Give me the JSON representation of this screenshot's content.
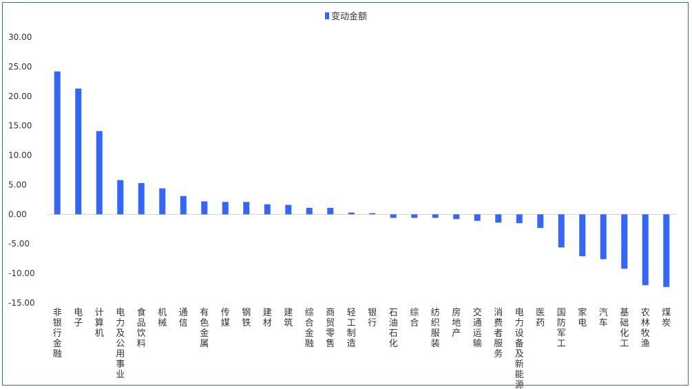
{
  "chart_data": {
    "type": "bar",
    "title": "",
    "xlabel": "",
    "ylabel": "",
    "legend": {
      "position": "top-center"
    },
    "grid": false,
    "ylim": [
      -15,
      30
    ],
    "yticks": [
      "30.00",
      "25.00",
      "20.00",
      "15.00",
      "10.00",
      "5.00",
      "0.00",
      "-5.00",
      "-10.00",
      "-15.00"
    ],
    "yticks_values": [
      30,
      25,
      20,
      15,
      10,
      5,
      0,
      -5,
      -10,
      -15
    ],
    "categories": [
      "非银行金融",
      "电子",
      "计算机",
      "电力及公用事业",
      "食品饮料",
      "机械",
      "通信",
      "有色金属",
      "传媒",
      "钢铁",
      "建材",
      "建筑",
      "综合金融",
      "商贸零售",
      "轻工制造",
      "银行",
      "石油石化",
      "综合",
      "纺织服装",
      "房地产",
      "交通运输",
      "消费者服务",
      "电力设备及新能源",
      "医药",
      "国防军工",
      "家电",
      "汽车",
      "基础化工",
      "农林牧渔",
      "煤炭"
    ],
    "series": [
      {
        "name": "变动金额",
        "color": "#3366ff",
        "values": [
          24.2,
          21.3,
          14.1,
          5.8,
          5.3,
          4.4,
          3.1,
          2.2,
          2.1,
          2.1,
          1.7,
          1.6,
          1.1,
          1.1,
          0.3,
          0.2,
          -0.6,
          -0.6,
          -0.6,
          -0.8,
          -1.1,
          -1.4,
          -1.5,
          -2.3,
          -5.6,
          -7.1,
          -7.6,
          -9.2,
          -12.0,
          -12.3
        ]
      }
    ]
  }
}
